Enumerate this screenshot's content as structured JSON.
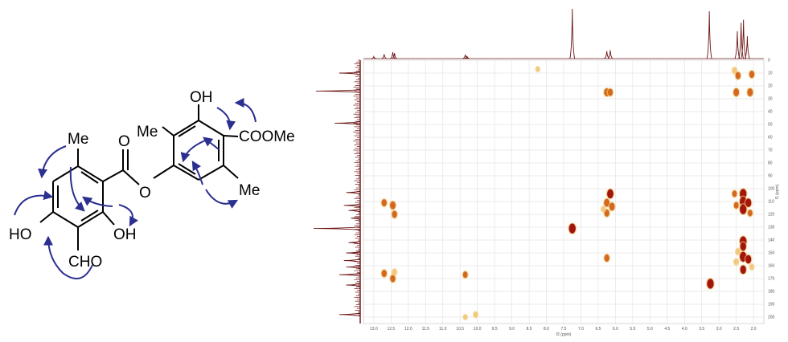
{
  "structure": {
    "labels": {
      "me_top_left": "Me",
      "carbonyl_o": "O",
      "ester_o": "O",
      "ho_left": "HO",
      "oh_bottom": "OH",
      "cho": "CHO",
      "me_top_right": "Me",
      "oh_top_right": "OH",
      "coome": "COOMe",
      "me_right": "Me"
    },
    "colors": {
      "bond": "#000000",
      "arrow": "#2b2f8f"
    }
  },
  "chart_data": {
    "type": "heatmap",
    "subtype": "2D NMR HMBC spectrum",
    "xlabel": "f2 (ppm)",
    "ylabel": "f1 (ppm)",
    "xlim": [
      13.3,
      1.7
    ],
    "ylim": [
      0,
      205
    ],
    "x_ticks": [
      "13.0",
      "12.5",
      "12.0",
      "11.5",
      "11.0",
      "10.5",
      "10.0",
      "9.5",
      "9.0",
      "8.5",
      "8.0",
      "7.5",
      "7.0",
      "6.5",
      "6.0",
      "5.5",
      "5.0",
      "4.5",
      "4.0",
      "3.5",
      "3.0",
      "2.5",
      "2.0"
    ],
    "y_ticks": [
      "0",
      "10",
      "20",
      "30",
      "40",
      "50",
      "60",
      "70",
      "80",
      "90",
      "100",
      "110",
      "120",
      "130",
      "140",
      "150",
      "160",
      "170",
      "180",
      "190",
      "200"
    ],
    "grid": true,
    "colors": {
      "strong": "#a3160c",
      "medium": "#d2691e",
      "weak": "#f2c97a",
      "trace": "#6b1414",
      "grid": "#e4e4e4"
    },
    "peaks": [
      {
        "x": 12.7,
        "y": 111,
        "i": 0.6
      },
      {
        "x": 12.45,
        "y": 113,
        "i": 0.7
      },
      {
        "x": 12.4,
        "y": 120,
        "i": 0.6
      },
      {
        "x": 12.7,
        "y": 166,
        "i": 0.6
      },
      {
        "x": 12.45,
        "y": 170,
        "i": 0.6
      },
      {
        "x": 12.4,
        "y": 165,
        "i": 0.4
      },
      {
        "x": 10.35,
        "y": 167,
        "i": 0.5
      },
      {
        "x": 10.05,
        "y": 198,
        "i": 0.3
      },
      {
        "x": 10.35,
        "y": 200,
        "i": 0.2
      },
      {
        "x": 8.25,
        "y": 7,
        "i": 0.2
      },
      {
        "x": 7.25,
        "y": 131,
        "i": 1.0
      },
      {
        "x": 6.25,
        "y": 25,
        "i": 0.7
      },
      {
        "x": 6.15,
        "y": 25,
        "i": 0.6
      },
      {
        "x": 6.15,
        "y": 104,
        "i": 0.9
      },
      {
        "x": 6.25,
        "y": 111,
        "i": 0.7
      },
      {
        "x": 6.1,
        "y": 114,
        "i": 0.7
      },
      {
        "x": 6.25,
        "y": 119,
        "i": 0.6
      },
      {
        "x": 6.35,
        "y": 116,
        "i": 0.3
      },
      {
        "x": 6.25,
        "y": 154,
        "i": 0.6
      },
      {
        "x": 3.25,
        "y": 174,
        "i": 1.0
      },
      {
        "x": 2.55,
        "y": 8,
        "i": 0.4
      },
      {
        "x": 2.45,
        "y": 12,
        "i": 0.6
      },
      {
        "x": 2.05,
        "y": 11,
        "i": 0.6
      },
      {
        "x": 2.5,
        "y": 25,
        "i": 0.7
      },
      {
        "x": 2.1,
        "y": 25,
        "i": 0.7
      },
      {
        "x": 2.55,
        "y": 104,
        "i": 0.5
      },
      {
        "x": 2.3,
        "y": 104,
        "i": 1.0
      },
      {
        "x": 2.3,
        "y": 110,
        "i": 1.0
      },
      {
        "x": 2.3,
        "y": 116,
        "i": 1.0
      },
      {
        "x": 2.15,
        "y": 111,
        "i": 0.8
      },
      {
        "x": 2.5,
        "y": 113,
        "i": 0.5
      },
      {
        "x": 2.1,
        "y": 119,
        "i": 0.5
      },
      {
        "x": 2.3,
        "y": 141,
        "i": 1.0
      },
      {
        "x": 2.3,
        "y": 145,
        "i": 0.8
      },
      {
        "x": 2.45,
        "y": 149,
        "i": 0.4
      },
      {
        "x": 2.3,
        "y": 153,
        "i": 1.0
      },
      {
        "x": 2.15,
        "y": 155,
        "i": 0.8
      },
      {
        "x": 2.3,
        "y": 163,
        "i": 0.8
      },
      {
        "x": 2.5,
        "y": 157,
        "i": 0.4
      },
      {
        "x": 2.05,
        "y": 161,
        "i": 0.3
      }
    ],
    "top_projection": [
      {
        "x": 13.0,
        "h": 0.04
      },
      {
        "x": 12.7,
        "h": 0.09
      },
      {
        "x": 12.45,
        "h": 0.13
      },
      {
        "x": 12.4,
        "h": 0.11
      },
      {
        "x": 10.35,
        "h": 0.08
      },
      {
        "x": 10.3,
        "h": 0.05
      },
      {
        "x": 7.25,
        "h": 1.0
      },
      {
        "x": 6.25,
        "h": 0.15
      },
      {
        "x": 6.15,
        "h": 0.17
      },
      {
        "x": 3.28,
        "h": 0.95
      },
      {
        "x": 2.47,
        "h": 0.55
      },
      {
        "x": 2.36,
        "h": 0.72
      },
      {
        "x": 2.29,
        "h": 0.78
      },
      {
        "x": 2.18,
        "h": 0.45
      }
    ],
    "side_projection": [
      {
        "y": 10,
        "h": 0.45
      },
      {
        "y": 24,
        "h": 0.95
      },
      {
        "y": 49,
        "h": 0.55
      },
      {
        "y": 103,
        "h": 0.3
      },
      {
        "y": 113,
        "h": 0.35
      },
      {
        "y": 117,
        "h": 0.25
      },
      {
        "y": 123,
        "h": 0.2
      },
      {
        "y": 131,
        "h": 1.0
      },
      {
        "y": 142,
        "h": 0.25
      },
      {
        "y": 150,
        "h": 0.3
      },
      {
        "y": 156,
        "h": 0.35
      },
      {
        "y": 161,
        "h": 0.3
      },
      {
        "y": 167,
        "h": 0.45
      },
      {
        "y": 175,
        "h": 0.3
      },
      {
        "y": 198,
        "h": 0.45
      }
    ]
  }
}
